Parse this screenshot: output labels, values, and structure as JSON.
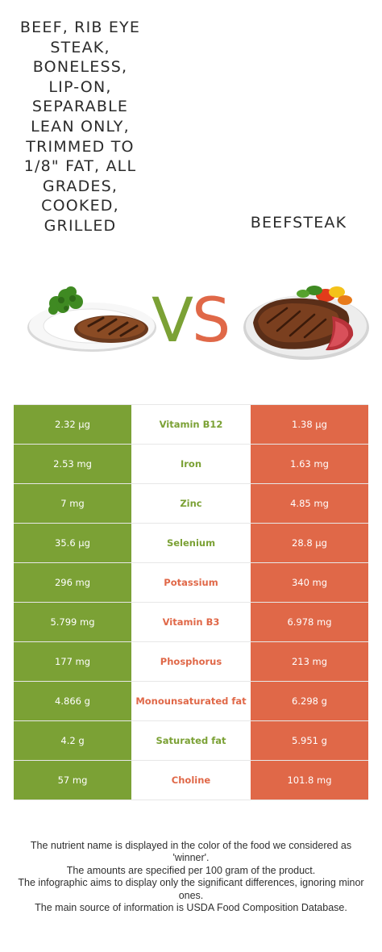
{
  "titles": {
    "left": "BEEF, RIB EYE STEAK, BONELESS, LIP-ON, SEPARABLE LEAN ONLY, TRIMMED TO 1/8\" FAT, ALL GRADES, COOKED, GRILLED",
    "right": "BEEFSTEAK"
  },
  "vs": {
    "v": "V",
    "s": "S"
  },
  "colors": {
    "left_winner": "#7ba135",
    "right_winner": "#e06848",
    "border": "#e7e7e7"
  },
  "rows": [
    {
      "left": "2.32 µg",
      "nutrient": "Vitamin B12",
      "right": "1.38 µg",
      "winner": "left"
    },
    {
      "left": "2.53 mg",
      "nutrient": "Iron",
      "right": "1.63 mg",
      "winner": "left"
    },
    {
      "left": "7 mg",
      "nutrient": "Zinc",
      "right": "4.85 mg",
      "winner": "left"
    },
    {
      "left": "35.6 µg",
      "nutrient": "Selenium",
      "right": "28.8 µg",
      "winner": "left"
    },
    {
      "left": "296 mg",
      "nutrient": "Potassium",
      "right": "340 mg",
      "winner": "right"
    },
    {
      "left": "5.799 mg",
      "nutrient": "Vitamin B3",
      "right": "6.978 mg",
      "winner": "right"
    },
    {
      "left": "177 mg",
      "nutrient": "Phosphorus",
      "right": "213 mg",
      "winner": "right"
    },
    {
      "left": "4.866 g",
      "nutrient": "Monounsaturated fat",
      "right": "6.298 g",
      "winner": "right"
    },
    {
      "left": "4.2 g",
      "nutrient": "Saturated fat",
      "right": "5.951 g",
      "winner": "left"
    },
    {
      "left": "57 mg",
      "nutrient": "Choline",
      "right": "101.8 mg",
      "winner": "right"
    }
  ],
  "footer": {
    "line1": "The nutrient name is displayed in the color of the food we considered as 'winner'.",
    "line2": "The amounts are specified per 100 gram of the product.",
    "line3": "The infographic aims to display only the significant differences, ignoring minor ones.",
    "line4": "The main source of information is USDA Food Composition Database."
  }
}
